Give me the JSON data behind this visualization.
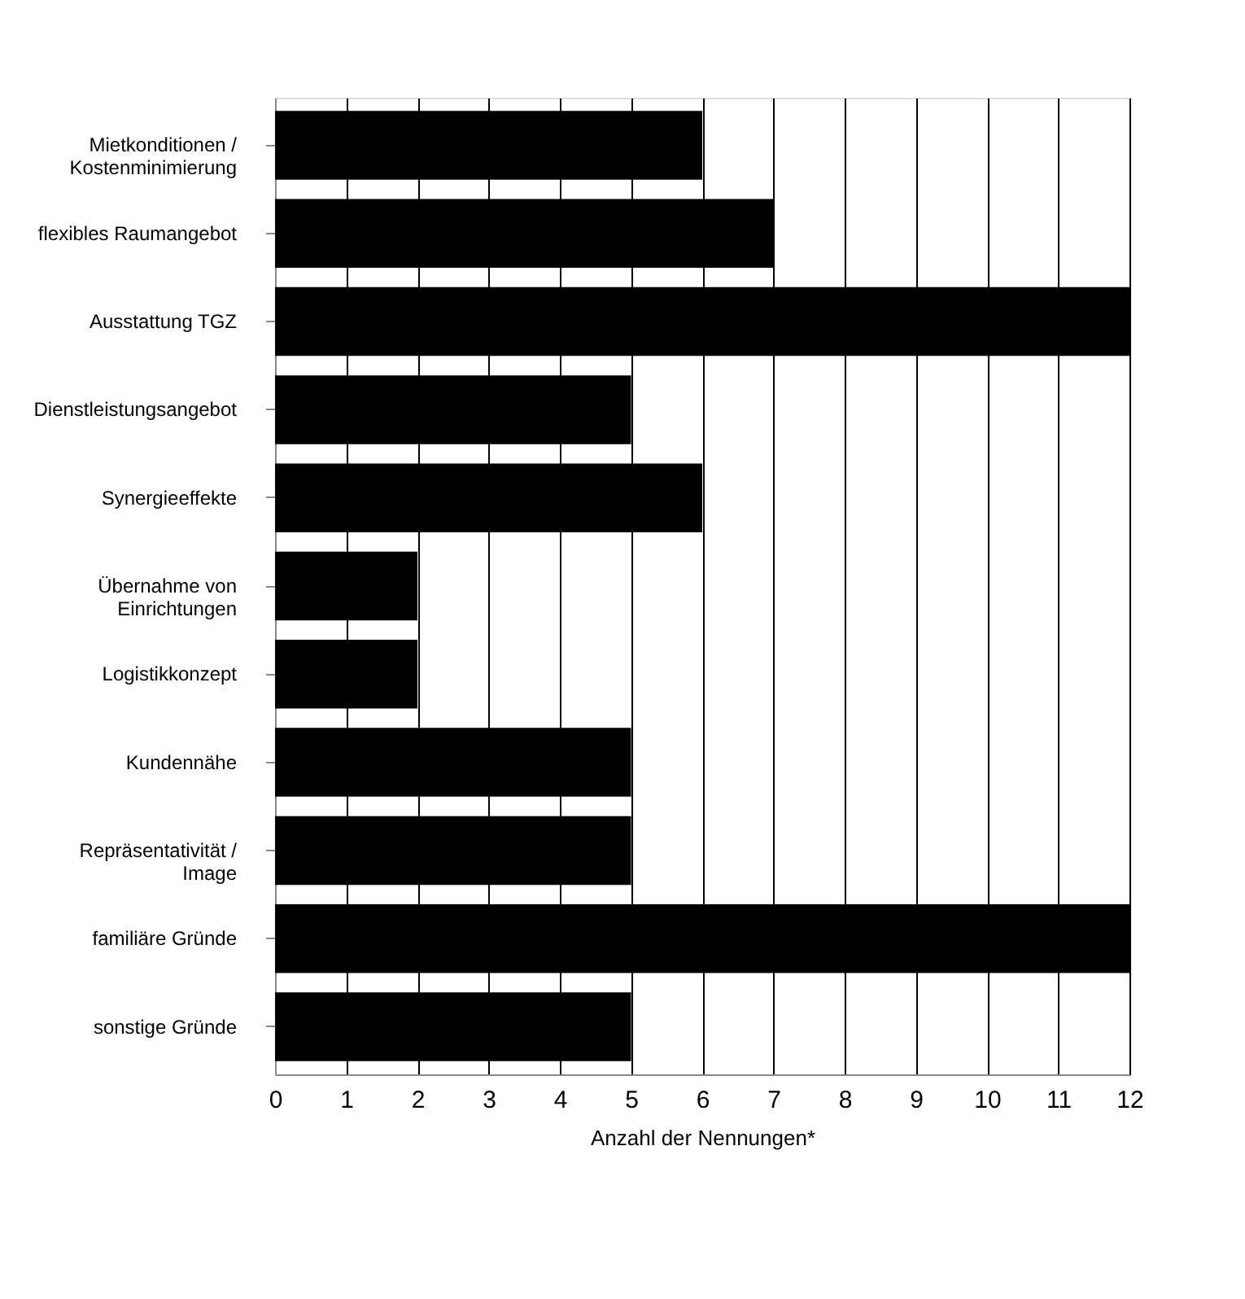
{
  "chart_data": {
    "type": "bar",
    "orientation": "horizontal",
    "categories": [
      "Mietkonditionen /\nKostenminimierung",
      "flexibles Raumangebot",
      "Ausstattung TGZ",
      "Dienstleistungsangebot",
      "Synergieeffekte",
      "Übernahme von\nEinrichtungen",
      "Logistikkonzept",
      "Kundennähe",
      "Repräsentativität /\nImage",
      "familiäre Gründe",
      "sonstige Gründe"
    ],
    "values": [
      6,
      7,
      12,
      5,
      6,
      2,
      2,
      5,
      5,
      12,
      5
    ],
    "color": "#000000",
    "xlim": [
      0,
      12
    ],
    "xticks": [
      0,
      1,
      2,
      3,
      4,
      5,
      6,
      7,
      8,
      9,
      10,
      11,
      12
    ],
    "xlabel": "Anzahl der Nennungen*",
    "grid": "x"
  }
}
